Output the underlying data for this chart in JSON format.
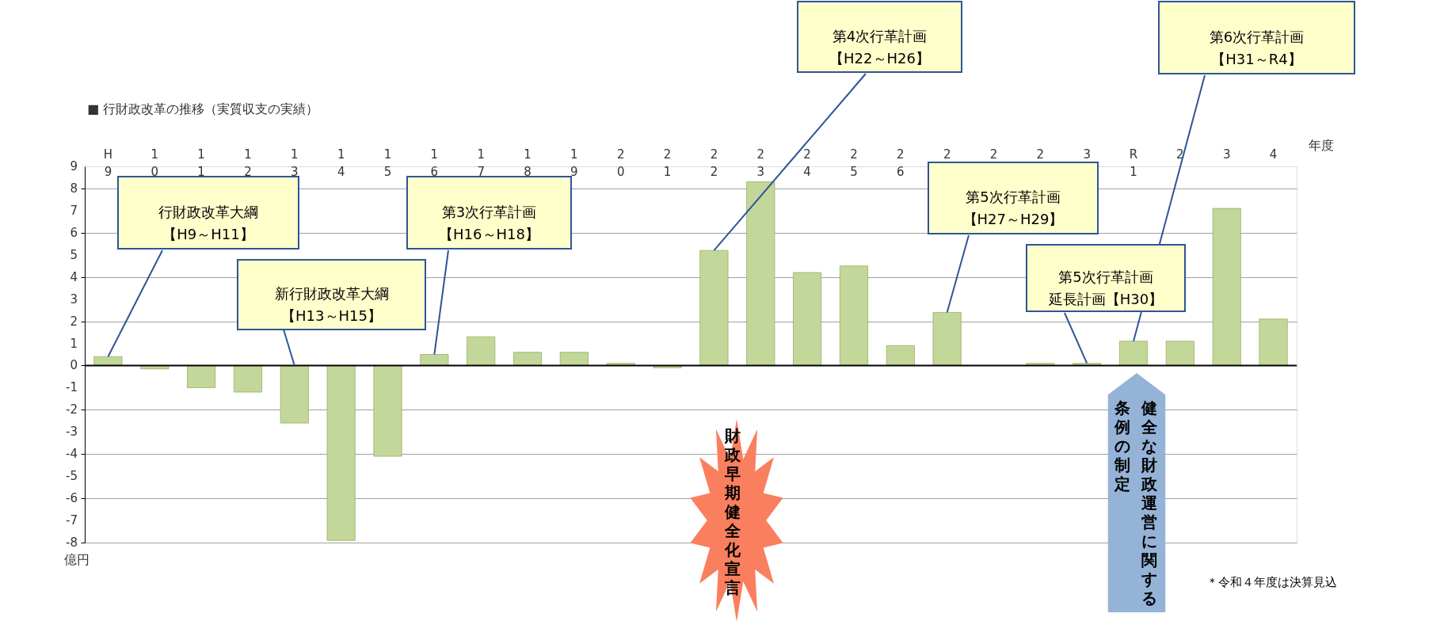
{
  "chart_data": {
    "type": "bar",
    "title": "■ 行財政改革の推移（実質収支の実績）",
    "categories": [
      "H9",
      "10",
      "11",
      "12",
      "13",
      "14",
      "15",
      "16",
      "17",
      "18",
      "19",
      "20",
      "21",
      "22",
      "23",
      "24",
      "25",
      "26",
      "27",
      "28",
      "29",
      "30",
      "R1",
      "2",
      "3",
      "4"
    ],
    "values": [
      0.4,
      -0.15,
      -1.0,
      -1.2,
      -2.6,
      -7.9,
      -4.1,
      0.5,
      1.3,
      0.6,
      0.6,
      0.1,
      -0.1,
      5.2,
      8.3,
      4.2,
      4.5,
      0.9,
      2.4,
      null,
      0.1,
      0.1,
      1.1,
      1.1,
      7.1,
      2.1
    ],
    "color": "#c4d79b",
    "ylim": [
      -8,
      9
    ],
    "yticks": [
      -8,
      -7,
      -6,
      -5,
      -4,
      -3,
      -2,
      -1,
      0,
      1,
      2,
      3,
      4,
      5,
      6,
      7,
      8,
      9
    ],
    "grid": "y",
    "xlabel": "年度",
    "ylabel": "億円",
    "annotations": [
      {
        "text": "行財政改革大綱【H9～H11】",
        "x": "H9",
        "y": 0.4
      },
      {
        "text": "新行財政改革大綱【H13～H15】",
        "x": "13",
        "y": 0
      },
      {
        "text": "第3次行革計画【H16～H18】",
        "x": "16",
        "y": 0.5
      },
      {
        "text": "第4次行革計画【H22～H26】",
        "x": "22",
        "y": 5.2
      },
      {
        "text": "第5次行革計画【H27～H29】",
        "x": "27",
        "y": 2.4
      },
      {
        "text": "第5次行革計画延長計画【H30】",
        "x": "30",
        "y": 0.1
      },
      {
        "text": "第6次行革計画【H31～R4】",
        "x": "R1",
        "y": 1.1
      },
      "財政早期健全化宣言",
      "健全な財政運営に関する",
      "条例の制定",
      "＊令和４年度は決算見込"
    ]
  }
}
